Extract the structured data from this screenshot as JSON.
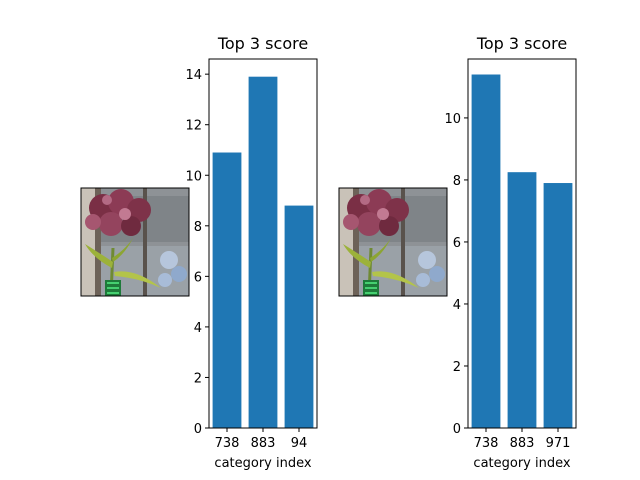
{
  "bar_color": "#1f77b4",
  "chart_data": [
    {
      "type": "bar",
      "title": "Top 3 score",
      "xlabel": "category index",
      "ylabel": "",
      "categories": [
        "738",
        "883",
        "94"
      ],
      "values": [
        10.9,
        13.9,
        8.8
      ],
      "ylim": [
        0,
        14.6
      ],
      "yticks": [
        0,
        2,
        4,
        6,
        8,
        10,
        12,
        14
      ],
      "grid": false
    },
    {
      "type": "bar",
      "title": "Top 3 score",
      "xlabel": "category index",
      "ylabel": "",
      "categories": [
        "738",
        "883",
        "971"
      ],
      "values": [
        11.4,
        8.25,
        7.9
      ],
      "ylim": [
        0,
        11.9
      ],
      "yticks": [
        0,
        2,
        4,
        6,
        8,
        10
      ],
      "grid": false
    }
  ],
  "thumbnails": [
    {
      "icon": "flower-photo-icon"
    },
    {
      "icon": "flower-photo-icon"
    }
  ]
}
